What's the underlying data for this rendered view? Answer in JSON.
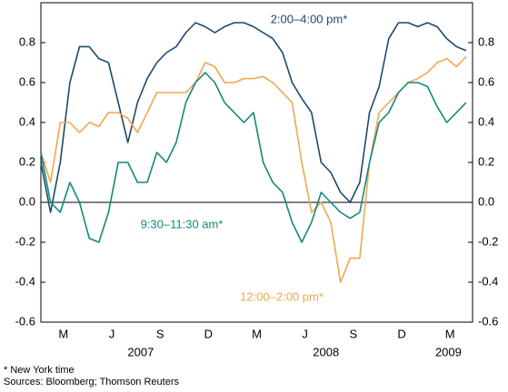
{
  "chart_data": {
    "type": "line",
    "x": [
      1.1,
      1.7,
      2.3,
      2.9,
      3.5,
      4.1,
      4.7,
      5.3,
      5.9,
      6.5,
      7.1,
      7.7,
      8.3,
      8.9,
      9.5,
      10.1,
      10.7,
      11.3,
      11.9,
      12.5,
      13.1,
      13.7,
      14.3,
      14.9,
      15.5,
      16.1,
      16.7,
      17.3,
      17.9,
      18.5,
      19.1,
      19.7,
      20.3,
      20.9,
      21.5,
      22.1,
      22.7,
      23.3,
      23.9,
      24.5,
      25.1,
      25.7,
      26.3,
      26.9,
      27.5
    ],
    "series": [
      {
        "name": "2:00–4:00 pm*",
        "color": "#1b4a6b",
        "values": [
          0.2,
          -0.05,
          0.2,
          0.6,
          0.78,
          0.78,
          0.72,
          0.7,
          0.5,
          0.3,
          0.5,
          0.62,
          0.7,
          0.75,
          0.78,
          0.85,
          0.9,
          0.88,
          0.85,
          0.88,
          0.9,
          0.9,
          0.88,
          0.85,
          0.82,
          0.75,
          0.6,
          0.52,
          0.45,
          0.2,
          0.15,
          0.05,
          0.0,
          0.1,
          0.45,
          0.58,
          0.82,
          0.9,
          0.9,
          0.88,
          0.9,
          0.88,
          0.82,
          0.78,
          0.76
        ]
      },
      {
        "name": "12:00–2:00 pm*",
        "color": "#f3a64c",
        "values": [
          0.25,
          0.1,
          0.4,
          0.4,
          0.35,
          0.4,
          0.38,
          0.45,
          0.45,
          0.42,
          0.35,
          0.45,
          0.55,
          0.55,
          0.55,
          0.55,
          0.6,
          0.7,
          0.68,
          0.6,
          0.6,
          0.62,
          0.62,
          0.63,
          0.6,
          0.55,
          0.5,
          0.2,
          -0.05,
          0.0,
          -0.1,
          -0.4,
          -0.28,
          -0.28,
          0.2,
          0.45,
          0.5,
          0.55,
          0.6,
          0.62,
          0.65,
          0.7,
          0.72,
          0.68,
          0.73
        ]
      },
      {
        "name": "9:30–11:30 am*",
        "color": "#13897a",
        "values": [
          0.25,
          0.0,
          -0.05,
          0.1,
          0.0,
          -0.18,
          -0.2,
          -0.05,
          0.2,
          0.2,
          0.1,
          0.1,
          0.25,
          0.2,
          0.3,
          0.5,
          0.6,
          0.65,
          0.6,
          0.5,
          0.45,
          0.4,
          0.45,
          0.2,
          0.1,
          0.05,
          -0.1,
          -0.2,
          -0.1,
          0.05,
          0.0,
          -0.05,
          -0.08,
          -0.05,
          0.2,
          0.4,
          0.45,
          0.55,
          0.6,
          0.6,
          0.58,
          0.48,
          0.4,
          0.45,
          0.5
        ]
      }
    ],
    "xlim": [
      1.1,
      27.9
    ],
    "xticks": [
      {
        "value": 2.5,
        "label": "M"
      },
      {
        "value": 5.5,
        "label": "J"
      },
      {
        "value": 8.5,
        "label": "S"
      },
      {
        "value": 11.5,
        "label": "D"
      },
      {
        "value": 14.5,
        "label": "M"
      },
      {
        "value": 17.5,
        "label": "J"
      },
      {
        "value": 20.5,
        "label": "S"
      },
      {
        "value": 23.5,
        "label": "D"
      },
      {
        "value": 26.5,
        "label": "M"
      }
    ],
    "year_labels": [
      {
        "value": 7.3,
        "label": "2007"
      },
      {
        "value": 18.8,
        "label": "2008"
      },
      {
        "value": 26.4,
        "label": "2009"
      }
    ],
    "ylim": [
      -0.6,
      1.0
    ],
    "yticks": [
      -0.6,
      -0.4,
      -0.2,
      {
        "value": 0,
        "label": "0.0"
      },
      0.2,
      0.4,
      0.6,
      0.8
    ],
    "y2lim": [
      -0.6,
      1.0
    ],
    "y2ticks": [
      -0.6,
      -0.4,
      -0.2,
      {
        "value": 0,
        "label": "0.0"
      },
      0.2,
      0.4,
      0.6,
      0.8
    ],
    "footnote": "*   New York time",
    "source": "Sources: Bloomberg; Thomson Reuters"
  }
}
